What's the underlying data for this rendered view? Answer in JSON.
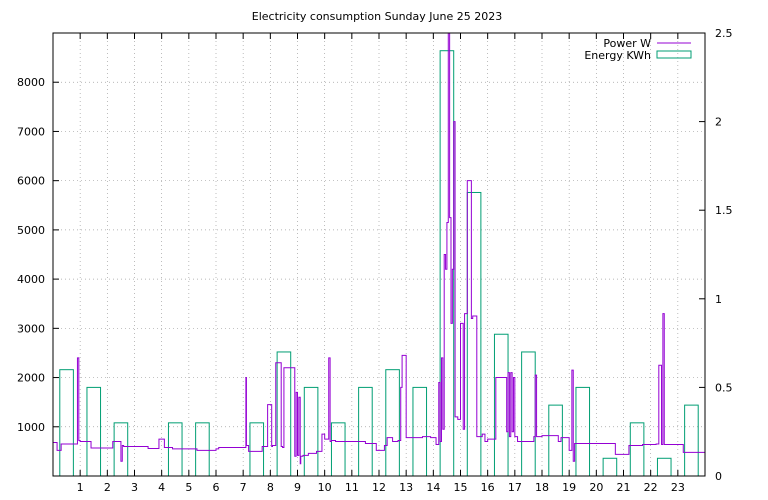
{
  "chart_data": {
    "type": "bar+line",
    "title": "Electricity consumption Sunday June 25 2023",
    "xlabel": "",
    "ylabel_left": "",
    "ylabel_right": "",
    "grid": true,
    "legend_position": "top-right",
    "colors": {
      "power": "#9400d3",
      "energy": "#009e73",
      "grid": "#a0a0a0"
    },
    "x_range": [
      0,
      24
    ],
    "y_left_range": [
      0,
      9000
    ],
    "y_right_range": [
      0,
      2.5
    ],
    "x_ticks": [
      1,
      2,
      3,
      4,
      5,
      6,
      7,
      8,
      9,
      10,
      11,
      12,
      13,
      14,
      15,
      16,
      17,
      18,
      19,
      20,
      21,
      22,
      23
    ],
    "x_tick_labels": [
      "1",
      "2",
      "3",
      "4",
      "5",
      "6",
      "7",
      "8",
      "9",
      "10",
      "11",
      "12",
      "13",
      "14",
      "15",
      "16",
      "17",
      "18",
      "19",
      "20",
      "21",
      "22",
      "23"
    ],
    "y_left_ticks": [
      1000,
      2000,
      3000,
      4000,
      5000,
      6000,
      7000,
      8000
    ],
    "y_left_tick_labels": [
      "1000",
      "2000",
      "3000",
      "4000",
      "5000",
      "6000",
      "7000",
      "8000"
    ],
    "y_right_ticks": [
      0,
      0.5,
      1,
      1.5,
      2,
      2.5
    ],
    "y_right_tick_labels": [
      "0",
      "0.5",
      "1",
      "1.5",
      "2",
      "2.5"
    ],
    "series": [
      {
        "name": "Power W",
        "type": "line",
        "axis": "left",
        "x": [
          0,
          0.15,
          0.15,
          0.3,
          0.3,
          0.9,
          0.9,
          0.95,
          0.95,
          1,
          1,
          1.4,
          1.4,
          2.2,
          2.2,
          2.5,
          2.5,
          2.55,
          2.55,
          2.6,
          2.6,
          3.5,
          3.5,
          3.9,
          3.9,
          4.1,
          4.1,
          4.4,
          4.4,
          5.3,
          5.3,
          6,
          6,
          6.1,
          6.1,
          7.1,
          7.1,
          7.12,
          7.12,
          7.2,
          7.2,
          7.7,
          7.7,
          7.9,
          7.9,
          8.05,
          8.05,
          8.08,
          8.08,
          8.2,
          8.2,
          8.4,
          8.4,
          8.45,
          8.45,
          8.5,
          8.5,
          8.9,
          8.9,
          8.95,
          8.95,
          9.0,
          9.0,
          9.05,
          9.05,
          9.1,
          9.1,
          9.12,
          9.12,
          9.2,
          9.2,
          9.25,
          9.25,
          9.4,
          9.4,
          9.7,
          9.7,
          9.9,
          9.9,
          10.0,
          10.0,
          10.15,
          10.15,
          10.2,
          10.2,
          10.25,
          10.25,
          10.4,
          10.4,
          11,
          11,
          11.5,
          11.5,
          11.9,
          11.9,
          12.2,
          12.2,
          12.3,
          12.3,
          12.5,
          12.5,
          12.7,
          12.7,
          12.8,
          12.8,
          12.85,
          12.85,
          13.0,
          13.0,
          13.6,
          13.6,
          13.9,
          13.9,
          14.1,
          14.1,
          14.15,
          14.15,
          14.2,
          14.2,
          14.25,
          14.25,
          14.3,
          14.3,
          14.35,
          14.35,
          14.4,
          14.4,
          14.45,
          14.45,
          14.5,
          14.5,
          14.55,
          14.55,
          14.6,
          14.6,
          14.65,
          14.65,
          14.7,
          14.7,
          14.75,
          14.75,
          14.8,
          14.8,
          14.9,
          14.9,
          15.0,
          15.0,
          15.1,
          15.1,
          15.15,
          15.15,
          15.25,
          15.25,
          15.4,
          15.4,
          15.45,
          15.45,
          15.6,
          15.6,
          15.8,
          15.8,
          15.9,
          15.9,
          16,
          16,
          16.3,
          16.3,
          16.7,
          16.7,
          16.75,
          16.75,
          16.8,
          16.8,
          16.85,
          16.85,
          16.9,
          16.9,
          16.95,
          16.95,
          17.0,
          17.0,
          17.1,
          17.1,
          17.2,
          17.2,
          17.7,
          17.7,
          17.75,
          17.75,
          17.8,
          17.8,
          18.0,
          18.0,
          18.3,
          18.3,
          18.6,
          18.6,
          18.7,
          18.7,
          19,
          19,
          19.1,
          19.1,
          19.15,
          19.15,
          19.2,
          19.2,
          19.3,
          19.3,
          20.7,
          20.7,
          21.2,
          21.2,
          21.7,
          21.7,
          22.2,
          22.2,
          22.3,
          22.3,
          22.4,
          22.4,
          22.45,
          22.45,
          22.5,
          22.5,
          22.7,
          22.7,
          23.2,
          23.2,
          24
        ],
        "y": [
          680,
          680,
          520,
          520,
          650,
          650,
          2400,
          2400,
          720,
          720,
          700,
          700,
          570,
          570,
          700,
          700,
          300,
          300,
          620,
          620,
          600,
          600,
          560,
          560,
          750,
          750,
          580,
          580,
          550,
          550,
          520,
          520,
          550,
          550,
          580,
          580,
          2000,
          2000,
          620,
          620,
          500,
          500,
          600,
          600,
          1450,
          1450,
          600,
          600,
          620,
          620,
          2300,
          2300,
          600,
          600,
          580,
          580,
          2200,
          2200,
          400,
          400,
          1700,
          1700,
          420,
          420,
          1600,
          1600,
          250,
          250,
          400,
          400,
          420,
          420,
          420,
          420,
          460,
          460,
          500,
          500,
          850,
          850,
          750,
          750,
          2400,
          2400,
          700,
          700,
          720,
          720,
          700,
          700,
          700,
          700,
          660,
          660,
          520,
          520,
          620,
          620,
          780,
          780,
          700,
          700,
          720,
          720,
          1800,
          1800,
          2450,
          2450,
          780,
          780,
          800,
          800,
          780,
          780,
          640,
          640,
          640,
          640,
          1900,
          1900,
          700,
          700,
          2400,
          2400,
          950,
          950,
          4500,
          4500,
          4200,
          4200,
          5150,
          5150,
          9000,
          9000,
          5250,
          5250,
          3100,
          3100,
          4200,
          4200,
          7200,
          7200,
          1200,
          1200,
          1150,
          1150,
          3100,
          3100,
          950,
          950,
          3300,
          3300,
          6000,
          6000,
          3200,
          3200,
          3250,
          3250,
          800,
          800,
          850,
          850,
          700,
          700,
          750,
          750,
          2000,
          2000,
          900,
          900,
          2100,
          2100,
          800,
          800,
          2100,
          2100,
          900,
          900,
          2000,
          2000,
          800,
          800,
          700,
          700,
          700,
          700,
          800,
          800,
          2050,
          2050,
          800,
          800,
          820,
          820,
          820,
          820,
          700,
          700,
          780,
          780,
          520,
          520,
          2150,
          2150,
          300,
          300,
          660,
          660,
          660,
          660,
          440,
          440,
          620,
          620,
          640,
          640,
          650,
          650,
          2250,
          2250,
          640,
          640,
          3300,
          3300,
          640,
          640,
          640,
          640,
          480,
          480
        ]
      },
      {
        "name": "Energy KWh",
        "type": "bar",
        "axis": "right",
        "x": [
          0,
          1,
          2,
          3,
          4,
          5,
          6,
          7,
          8,
          9,
          10,
          11,
          12,
          13,
          14,
          15,
          16,
          17,
          18,
          19,
          20,
          21,
          22,
          23
        ],
        "values": [
          0.6,
          0.5,
          0.3,
          0.0,
          0.3,
          0.3,
          0.0,
          0.3,
          0.7,
          0.5,
          0.3,
          0.5,
          0.6,
          0.5,
          2.4,
          1.6,
          0.8,
          0.7,
          0.4,
          0.5,
          0.1,
          0.3,
          0.1,
          0.4
        ]
      }
    ]
  }
}
